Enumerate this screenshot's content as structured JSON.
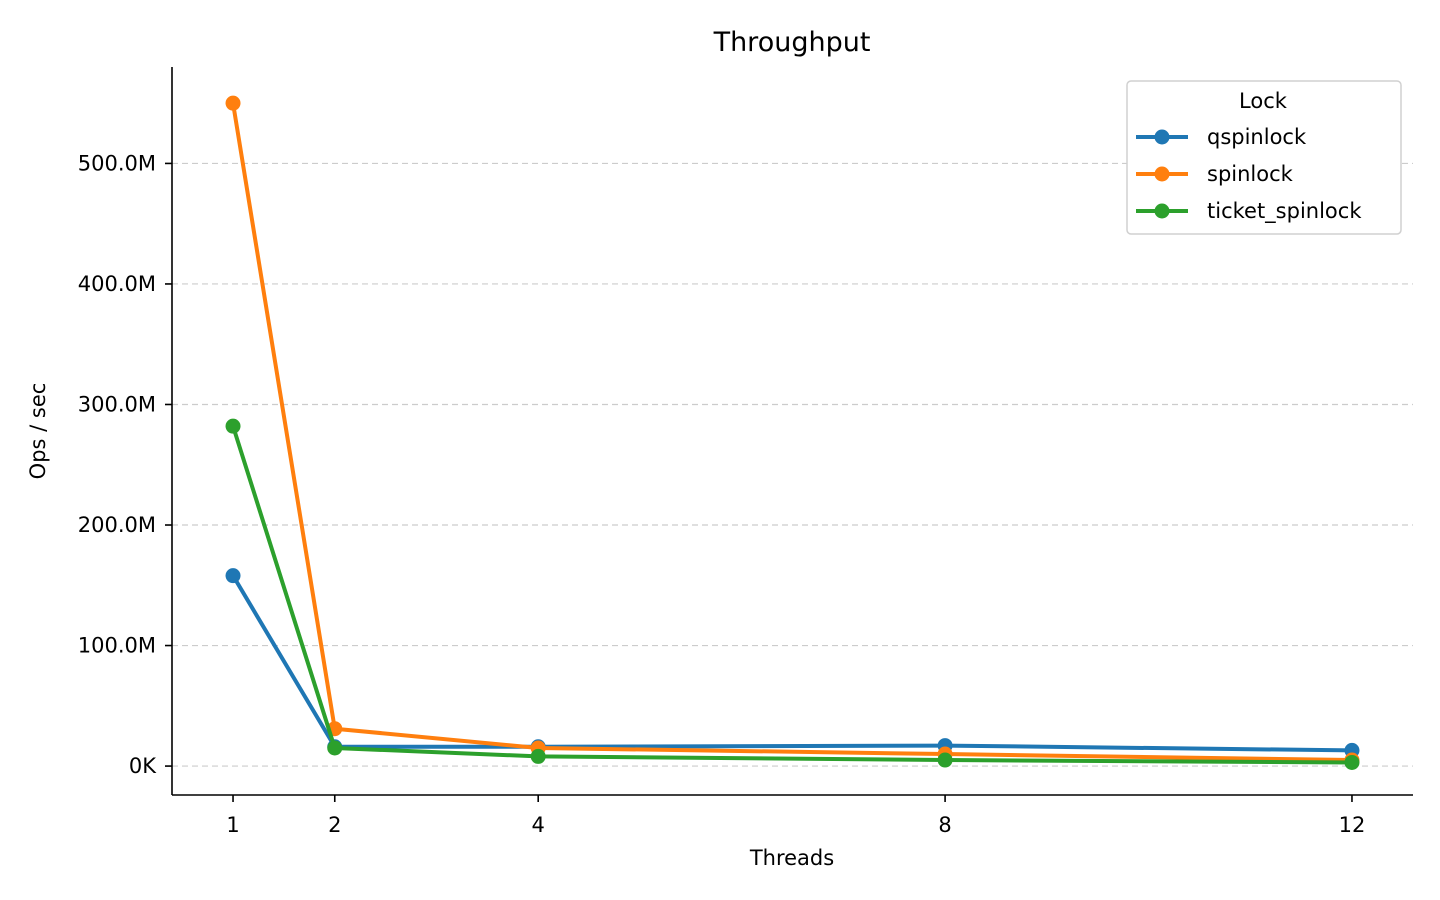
{
  "chart_data": {
    "type": "line",
    "title": "Throughput",
    "xlabel": "Threads",
    "ylabel": "Ops / sec",
    "x": [
      1,
      2,
      4,
      8,
      12
    ],
    "xticks": [
      1,
      2,
      4,
      8,
      12
    ],
    "xtick_labels": [
      "1",
      "2",
      "4",
      "8",
      "12"
    ],
    "xlim": [
      0.4,
      12.6
    ],
    "ylim": [
      -24000000,
      580000000
    ],
    "yticks": [
      0,
      100000000,
      200000000,
      300000000,
      400000000,
      500000000
    ],
    "ytick_labels": [
      "0K",
      "100.0M",
      "200.0M",
      "300.0M",
      "400.0M",
      "500.0M"
    ],
    "grid": "y-dashed",
    "legend": {
      "title": "Lock",
      "placement": "top-right"
    },
    "series": [
      {
        "name": "qspinlock",
        "color": "#1f77b4",
        "values": [
          158000000,
          16000000,
          16000000,
          17000000,
          13000000
        ]
      },
      {
        "name": "spinlock",
        "color": "#ff7f0e",
        "values": [
          550000000,
          31000000,
          15000000,
          10000000,
          5000000
        ]
      },
      {
        "name": "ticket_spinlock",
        "color": "#2ca02c",
        "values": [
          282000000,
          15000000,
          8000000,
          5000000,
          3000000
        ]
      }
    ]
  }
}
